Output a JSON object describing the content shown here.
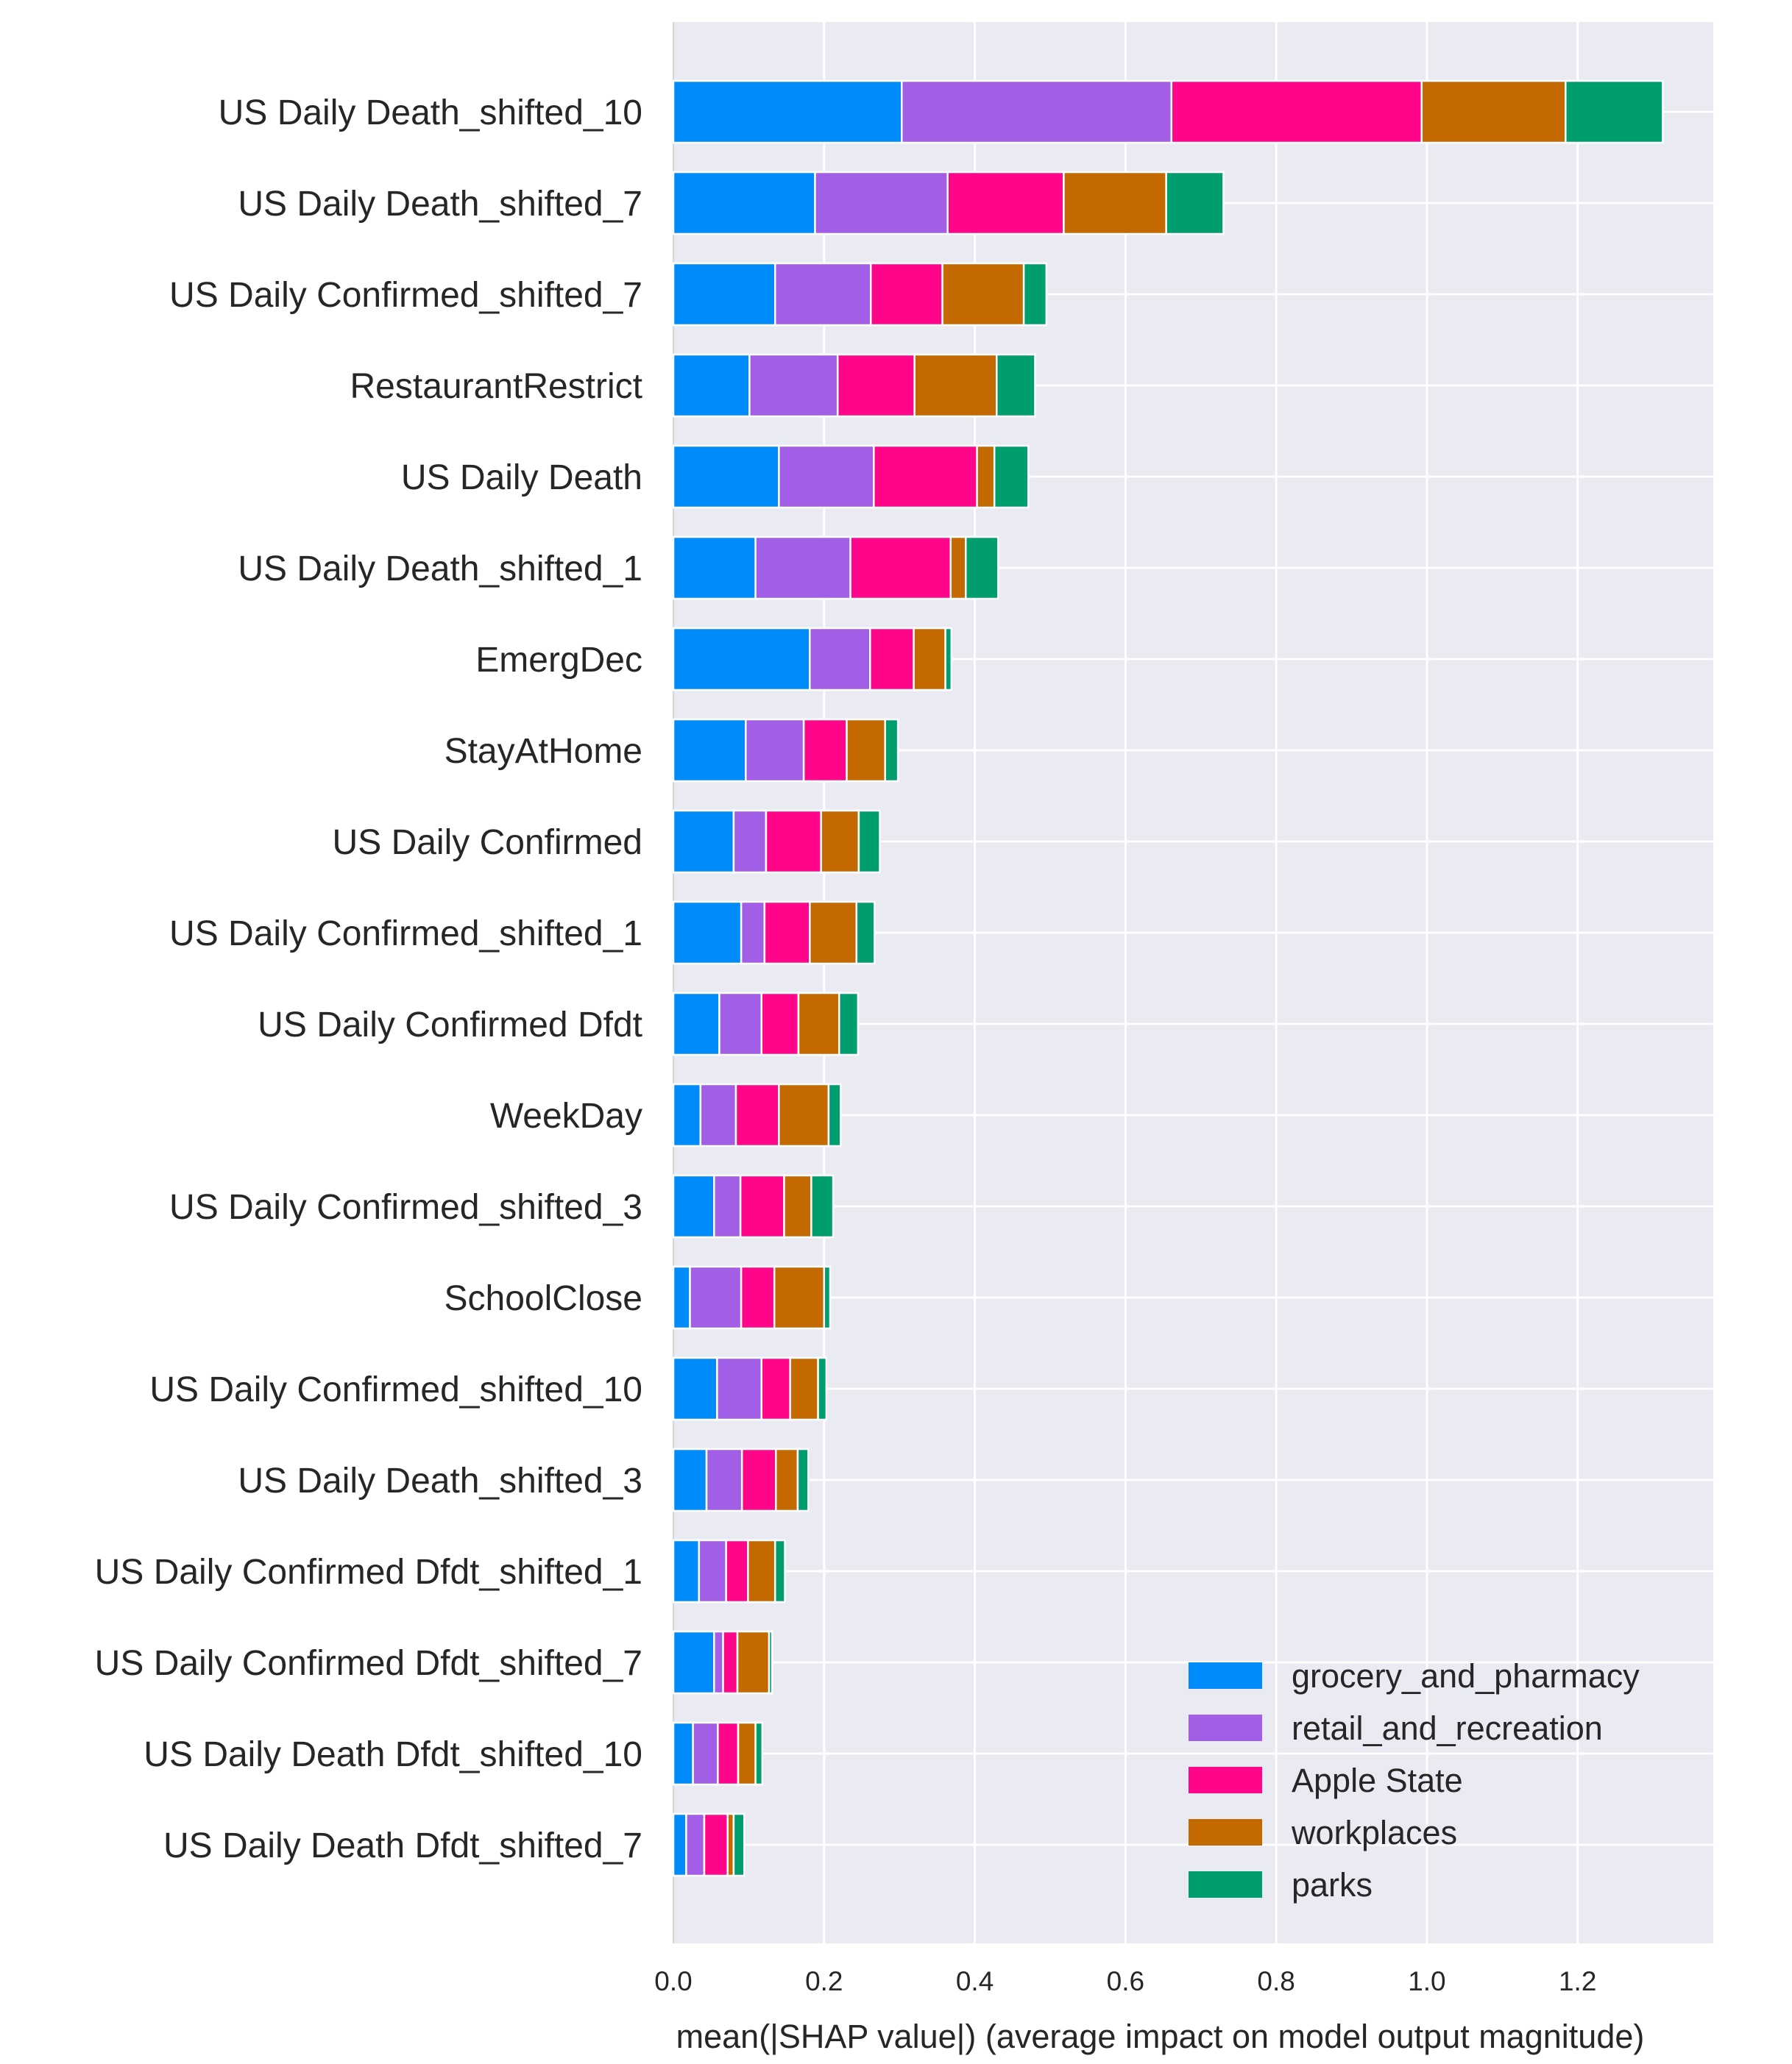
{
  "chart_data": {
    "type": "bar",
    "orientation": "horizontal",
    "stacked": true,
    "grid": true,
    "legend_position": "bottom-right",
    "xlabel": "mean(|SHAP value|) (average impact on model output magnitude)",
    "xlim": [
      0,
      1.38
    ],
    "xticks": [
      0.0,
      0.2,
      0.4,
      0.6,
      0.8,
      1.0,
      1.2
    ],
    "xtick_labels": [
      "0.0",
      "0.2",
      "0.4",
      "0.6",
      "0.8",
      "1.0",
      "1.2"
    ],
    "categories": [
      "US Daily Death_shifted_10",
      "US Daily Death_shifted_7",
      "US Daily Confirmed_shifted_7",
      "RestaurantRestrict",
      "US Daily Death",
      "US Daily Death_shifted_1",
      "EmergDec",
      "StayAtHome",
      "US Daily Confirmed",
      "US Daily Confirmed_shifted_1",
      "US Daily Confirmed Dfdt",
      "WeekDay",
      "US Daily Confirmed_shifted_3",
      "SchoolClose",
      "US Daily Confirmed_shifted_10",
      "US Daily Death_shifted_3",
      "US Daily Confirmed Dfdt_shifted_1",
      "US Daily Confirmed Dfdt_shifted_7",
      "US Daily Death Dfdt_shifted_10",
      "US Daily Death Dfdt_shifted_7"
    ],
    "series": [
      {
        "name": "grocery_and_pharmacy",
        "color": "#008bfb",
        "values": [
          0.303,
          0.188,
          0.135,
          0.101,
          0.14,
          0.109,
          0.181,
          0.096,
          0.08,
          0.09,
          0.061,
          0.036,
          0.054,
          0.022,
          0.058,
          0.044,
          0.034,
          0.054,
          0.026,
          0.017
        ]
      },
      {
        "name": "retail_and_recreation",
        "color": "#a25ee6",
        "values": [
          0.358,
          0.176,
          0.127,
          0.117,
          0.126,
          0.126,
          0.08,
          0.077,
          0.043,
          0.031,
          0.056,
          0.047,
          0.035,
          0.068,
          0.059,
          0.047,
          0.036,
          0.012,
          0.033,
          0.024
        ]
      },
      {
        "name": "Apple State",
        "color": "#ff0589",
        "values": [
          0.332,
          0.154,
          0.095,
          0.102,
          0.137,
          0.133,
          0.058,
          0.057,
          0.073,
          0.06,
          0.049,
          0.057,
          0.058,
          0.044,
          0.038,
          0.045,
          0.029,
          0.019,
          0.027,
          0.031
        ]
      },
      {
        "name": "workplaces",
        "color": "#c46900",
        "values": [
          0.191,
          0.136,
          0.108,
          0.109,
          0.023,
          0.02,
          0.042,
          0.051,
          0.05,
          0.062,
          0.054,
          0.066,
          0.036,
          0.066,
          0.037,
          0.029,
          0.036,
          0.042,
          0.023,
          0.008
        ]
      },
      {
        "name": "parks",
        "color": "#009d6e",
        "values": [
          0.129,
          0.076,
          0.03,
          0.051,
          0.045,
          0.043,
          0.008,
          0.017,
          0.028,
          0.024,
          0.025,
          0.016,
          0.029,
          0.008,
          0.011,
          0.014,
          0.013,
          0.004,
          0.009,
          0.014
        ]
      }
    ]
  }
}
